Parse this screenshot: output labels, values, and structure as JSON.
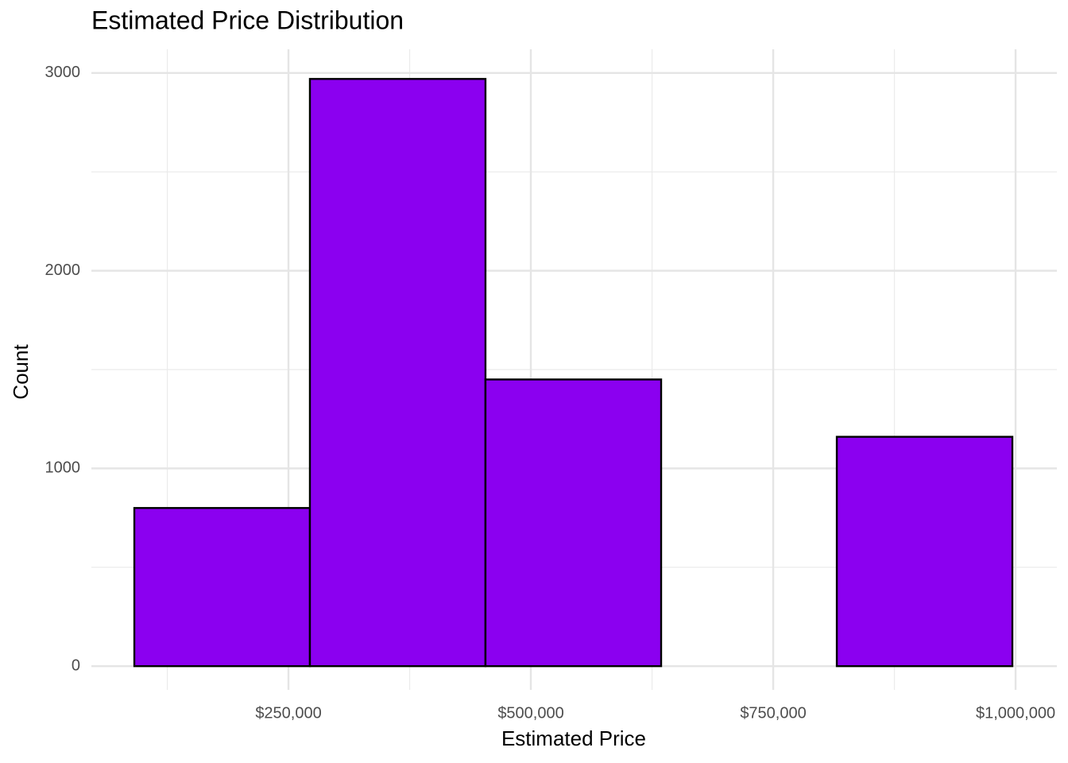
{
  "chart_data": {
    "type": "histogram",
    "title": "Estimated Price Distribution",
    "x_label": "Estimated Price",
    "y_label": "Count",
    "bins": [
      91000,
      272100,
      453200,
      634400,
      815600,
      996700
    ],
    "counts": [
      800,
      2970,
      1450,
      0,
      1160
    ],
    "color": "#8b00f0",
    "edgecolor": "#000000",
    "xlim": [
      46700,
      1042600
    ],
    "ylim": [
      -120,
      3120
    ],
    "xticks": [
      {
        "value": 250000,
        "label": "$250,000"
      },
      {
        "value": 500000,
        "label": "$500,000"
      },
      {
        "value": 750000,
        "label": "$750,000"
      },
      {
        "value": 1000000,
        "label": "$1,000,000"
      }
    ],
    "x_minor_ticks": [
      125000,
      375000,
      625000,
      875000
    ],
    "yticks": [
      0,
      1000,
      2000,
      3000
    ],
    "y_minor_ticks": [
      500,
      1500,
      2500
    ],
    "grid": true
  }
}
